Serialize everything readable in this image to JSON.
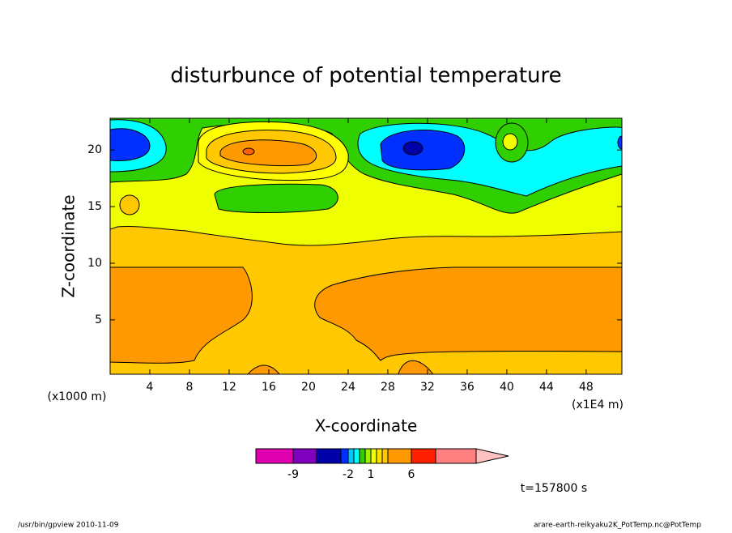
{
  "chart_data": {
    "type": "contour",
    "title": "disturbunce of potential temperature",
    "xlabel": "X-coordinate",
    "ylabel": "Z-coordinate",
    "x_unit": "(x1E4 m)",
    "y_unit": "(x1000 m)",
    "xlim": [
      0,
      51.6
    ],
    "ylim": [
      0.2,
      22.8
    ],
    "xticks": [
      4,
      8,
      12,
      16,
      20,
      24,
      28,
      32,
      36,
      40,
      44,
      48
    ],
    "yticks": [
      5,
      10,
      15,
      20
    ],
    "colorbar": {
      "colors": [
        "#e000b0",
        "#8000c0",
        "#0000a8",
        "#0030ff",
        "#00c8ff",
        "#00ffff",
        "#30d000",
        "#a0f000",
        "#f0ff00",
        "#ffe000",
        "#ffc800",
        "#ff9900",
        "#ff2000",
        "#ff8080",
        "#ffc0c0"
      ],
      "ticks": [
        -9,
        -2,
        1,
        6
      ]
    },
    "time_label": "t=157800 s",
    "footer_left": "/usr/bin/gpview  2010-11-09",
    "footer_right": "arare-earth-reikyaku2K_PotTemp.nc@PotTemp"
  }
}
